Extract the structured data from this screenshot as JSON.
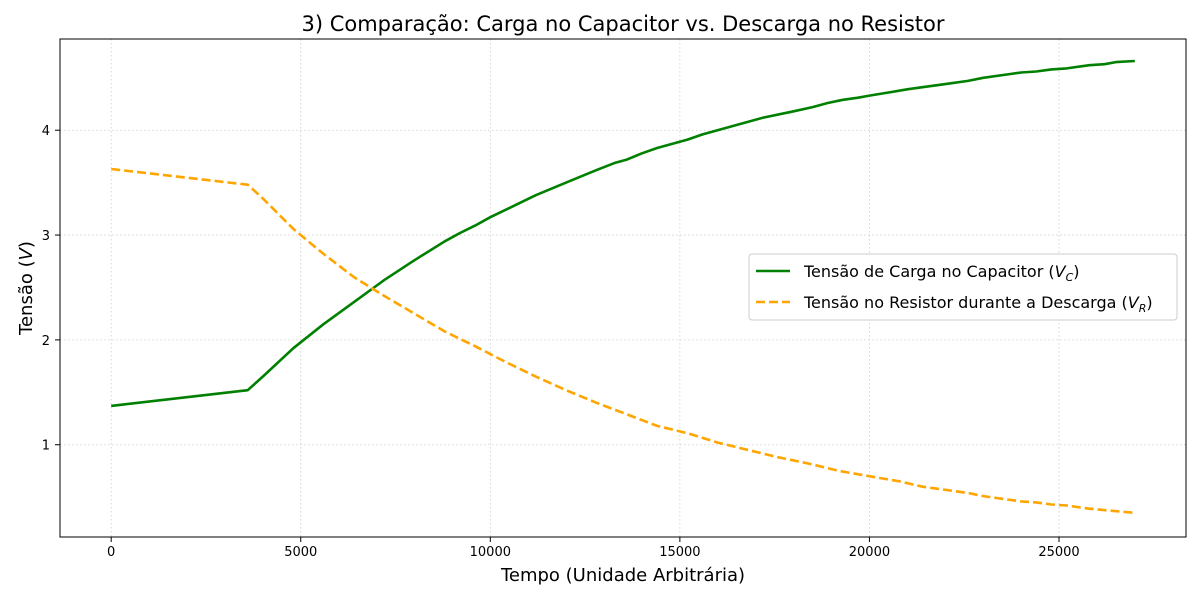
{
  "chart_data": {
    "type": "line",
    "title": "3) Comparação: Carga no Capacitor vs. Descarga no Resistor",
    "xlabel": "Tempo (Unidade Arbitrária)",
    "ylabel": "Tensão (V)",
    "xlim": [
      -1350,
      28350
    ],
    "ylim": [
      0.12,
      4.87
    ],
    "xticks": [
      0,
      5000,
      10000,
      15000,
      20000,
      25000
    ],
    "xtick_labels": [
      "0",
      "5000",
      "10000",
      "15000",
      "20000",
      "25000"
    ],
    "yticks": [
      1,
      2,
      3,
      4
    ],
    "ytick_labels": [
      "1",
      "2",
      "3",
      "4"
    ],
    "grid": true,
    "legend_position": "center-right",
    "series": [
      {
        "name": "Tensão de Carga no Capacitor (VC)",
        "legend_base": "Tensão de Carga no Capacitor (",
        "legend_sym": "V",
        "legend_sub": "C",
        "legend_close": ")",
        "color": "#008000",
        "style": "solid",
        "x": [
          0,
          3600,
          4000,
          4800,
          5600,
          6400,
          7200,
          8000,
          8800,
          9200,
          9600,
          10000,
          10800,
          11200,
          12000,
          12800,
          13300,
          13600,
          14000,
          14400,
          15200,
          15600,
          16400,
          17200,
          18000,
          18500,
          18900,
          19300,
          19700,
          20000,
          20500,
          21000,
          21400,
          22000,
          22600,
          23000,
          23600,
          24000,
          24400,
          24800,
          25200,
          25800,
          26200,
          26500,
          27000
        ],
        "values": [
          1.37,
          1.52,
          1.65,
          1.92,
          2.15,
          2.36,
          2.57,
          2.76,
          2.94,
          3.02,
          3.09,
          3.17,
          3.31,
          3.38,
          3.5,
          3.62,
          3.69,
          3.72,
          3.78,
          3.83,
          3.91,
          3.96,
          4.04,
          4.12,
          4.18,
          4.22,
          4.26,
          4.29,
          4.31,
          4.33,
          4.36,
          4.39,
          4.41,
          4.44,
          4.47,
          4.5,
          4.53,
          4.55,
          4.56,
          4.58,
          4.59,
          4.62,
          4.63,
          4.65,
          4.66
        ]
      },
      {
        "name": "Tensão no Resistor durante a Descarga (VR)",
        "legend_base": "Tensão no Resistor durante a Descarga (",
        "legend_sym": "V",
        "legend_sub": "R",
        "legend_close": ")",
        "color": "#FFA500",
        "style": "dashed",
        "x": [
          0,
          3600,
          4000,
          4800,
          5600,
          6400,
          7200,
          8000,
          8800,
          9600,
          10400,
          11200,
          12000,
          12800,
          13600,
          14400,
          15200,
          16000,
          16800,
          17600,
          18400,
          19200,
          20000,
          20800,
          21400,
          22000,
          22600,
          23000,
          23600,
          24000,
          24400,
          24800,
          25200,
          25800,
          26400,
          27000
        ],
        "values": [
          3.63,
          3.48,
          3.35,
          3.06,
          2.82,
          2.6,
          2.42,
          2.25,
          2.08,
          1.94,
          1.79,
          1.65,
          1.52,
          1.4,
          1.29,
          1.18,
          1.11,
          1.02,
          0.95,
          0.88,
          0.82,
          0.75,
          0.7,
          0.65,
          0.6,
          0.57,
          0.54,
          0.51,
          0.48,
          0.46,
          0.45,
          0.43,
          0.42,
          0.39,
          0.37,
          0.35
        ]
      }
    ]
  }
}
